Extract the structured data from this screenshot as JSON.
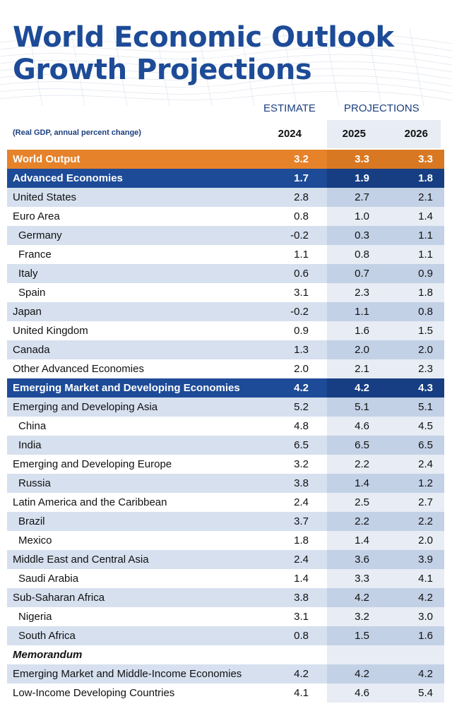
{
  "title": {
    "line1": "World Economic Outlook",
    "line2": "Growth Projections"
  },
  "header": {
    "estimate_label": "ESTIMATE",
    "projections_label": "PROJECTIONS",
    "subtitle": "(Real GDP, annual percent change)",
    "years": [
      "2024",
      "2025",
      "2026"
    ]
  },
  "colors": {
    "title_blue": "#1d4b97",
    "orange": "#e6822a",
    "light_band": "#d6e0ef"
  },
  "rows": [
    {
      "name": "World Output",
      "v2024": "3.2",
      "v2025": "3.3",
      "v2026": "3.3"
    },
    {
      "name": "Advanced Economies",
      "v2024": "1.7",
      "v2025": "1.9",
      "v2026": "1.8"
    },
    {
      "name": "United States",
      "v2024": "2.8",
      "v2025": "2.7",
      "v2026": "2.1"
    },
    {
      "name": "Euro Area",
      "v2024": "0.8",
      "v2025": "1.0",
      "v2026": "1.4"
    },
    {
      "name": "Germany",
      "v2024": "-0.2",
      "v2025": "0.3",
      "v2026": "1.1"
    },
    {
      "name": "France",
      "v2024": "1.1",
      "v2025": "0.8",
      "v2026": "1.1"
    },
    {
      "name": "Italy",
      "v2024": "0.6",
      "v2025": "0.7",
      "v2026": "0.9"
    },
    {
      "name": "Spain",
      "v2024": "3.1",
      "v2025": "2.3",
      "v2026": "1.8"
    },
    {
      "name": "Japan",
      "v2024": "-0.2",
      "v2025": "1.1",
      "v2026": "0.8"
    },
    {
      "name": "United Kingdom",
      "v2024": "0.9",
      "v2025": "1.6",
      "v2026": "1.5"
    },
    {
      "name": "Canada",
      "v2024": "1.3",
      "v2025": "2.0",
      "v2026": "2.0"
    },
    {
      "name": "Other Advanced Economies",
      "v2024": "2.0",
      "v2025": "2.1",
      "v2026": "2.3"
    },
    {
      "name": "Emerging Market and Developing Economies",
      "v2024": "4.2",
      "v2025": "4.2",
      "v2026": "4.3"
    },
    {
      "name": "Emerging and Developing Asia",
      "v2024": "5.2",
      "v2025": "5.1",
      "v2026": "5.1"
    },
    {
      "name": "China",
      "v2024": "4.8",
      "v2025": "4.6",
      "v2026": "4.5"
    },
    {
      "name": "India",
      "v2024": "6.5",
      "v2025": "6.5",
      "v2026": "6.5"
    },
    {
      "name": "Emerging and Developing Europe",
      "v2024": "3.2",
      "v2025": "2.2",
      "v2026": "2.4"
    },
    {
      "name": "Russia",
      "v2024": "3.8",
      "v2025": "1.4",
      "v2026": "1.2"
    },
    {
      "name": "Latin America and the Caribbean",
      "v2024": "2.4",
      "v2025": "2.5",
      "v2026": "2.7"
    },
    {
      "name": "Brazil",
      "v2024": "3.7",
      "v2025": "2.2",
      "v2026": "2.2"
    },
    {
      "name": "Mexico",
      "v2024": "1.8",
      "v2025": "1.4",
      "v2026": "2.0"
    },
    {
      "name": "Middle East and Central Asia",
      "v2024": "2.4",
      "v2025": "3.6",
      "v2026": "3.9"
    },
    {
      "name": "Saudi Arabia",
      "v2024": "1.4",
      "v2025": "3.3",
      "v2026": "4.1"
    },
    {
      "name": "Sub-Saharan Africa",
      "v2024": "3.8",
      "v2025": "4.2",
      "v2026": "4.2"
    },
    {
      "name": "Nigeria",
      "v2024": "3.1",
      "v2025": "3.2",
      "v2026": "3.0"
    },
    {
      "name": "South Africa",
      "v2024": "0.8",
      "v2025": "1.5",
      "v2026": "1.6"
    },
    {
      "name": "Memorandum",
      "v2024": "",
      "v2025": "",
      "v2026": ""
    },
    {
      "name": "Emerging Market and Middle-Income Economies",
      "v2024": "4.2",
      "v2025": "4.2",
      "v2026": "4.2"
    },
    {
      "name": "Low-Income Developing Countries",
      "v2024": "4.1",
      "v2025": "4.6",
      "v2026": "5.4"
    }
  ]
}
